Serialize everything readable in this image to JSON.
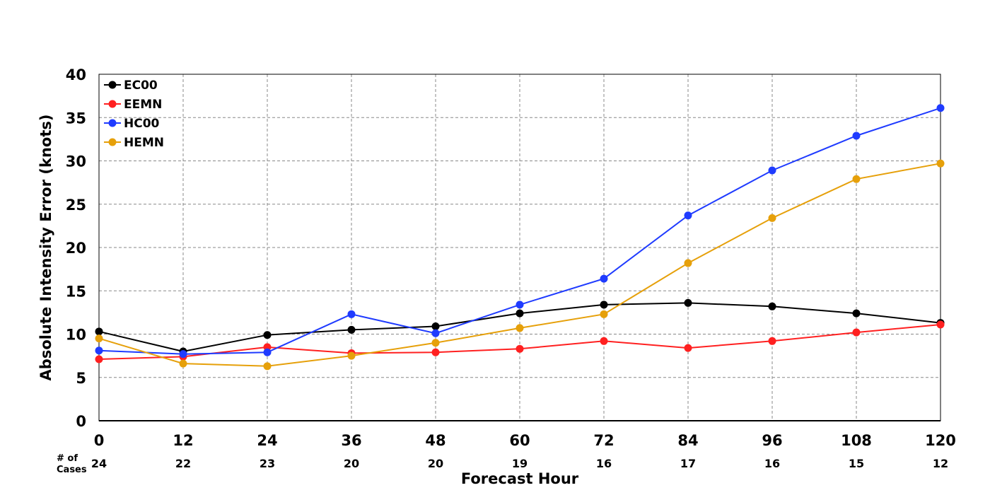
{
  "chart_data": {
    "type": "line",
    "title": "",
    "xlabel": "Forecast Hour",
    "ylabel": "Absolute Intensity Error (knots)",
    "x": [
      0,
      12,
      24,
      36,
      48,
      60,
      72,
      84,
      96,
      108,
      120
    ],
    "xlim": [
      0,
      120
    ],
    "ylim": [
      0,
      40
    ],
    "yticks": [
      0,
      5,
      10,
      15,
      20,
      25,
      30,
      35,
      40
    ],
    "grid": true,
    "legend_position": "top-left",
    "cases_label": "# of Cases",
    "cases": [
      24,
      22,
      23,
      20,
      20,
      19,
      16,
      17,
      16,
      15,
      12
    ],
    "series": [
      {
        "name": "EC00",
        "color": "#000000",
        "values": [
          10.3,
          8.0,
          9.9,
          10.5,
          10.9,
          12.4,
          13.4,
          13.6,
          13.2,
          12.4,
          11.3
        ]
      },
      {
        "name": "EEMN",
        "color": "#ff2020",
        "values": [
          7.1,
          7.4,
          8.5,
          7.8,
          7.9,
          8.3,
          9.2,
          8.4,
          9.2,
          10.2,
          11.1
        ]
      },
      {
        "name": "HC00",
        "color": "#1f3bff",
        "values": [
          8.1,
          7.7,
          7.9,
          12.3,
          10.1,
          13.4,
          16.4,
          23.7,
          28.9,
          32.9,
          36.1
        ]
      },
      {
        "name": "HEMN",
        "color": "#e6a00a",
        "values": [
          9.5,
          6.6,
          6.3,
          7.5,
          9.0,
          10.7,
          12.3,
          18.2,
          23.4,
          27.9,
          29.7
        ]
      }
    ]
  }
}
